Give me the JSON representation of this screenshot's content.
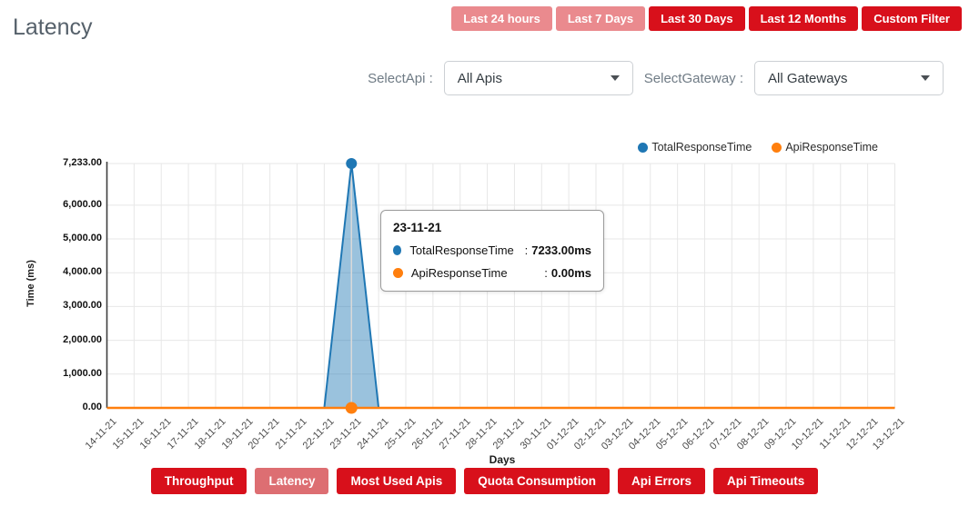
{
  "colors": {
    "red": "#d8101b",
    "red_light": "#ea8a8e",
    "red_mid": "#dd6e72",
    "blue": "#1f77b4",
    "blue_fill": "rgba(31,119,180,0.45)",
    "orange": "#ff7f0e",
    "grid": "#e7e7e7",
    "axis": "#3f3f3f",
    "crosshair": "#d9d9d9"
  },
  "page": {
    "title": "Latency"
  },
  "time_filters": {
    "items": [
      {
        "label": "Last 24 hours",
        "variant": "light"
      },
      {
        "label": "Last 7 Days",
        "variant": "light"
      },
      {
        "label": "Last 30 Days",
        "variant": "solid"
      },
      {
        "label": "Last 12 Months",
        "variant": "solid"
      },
      {
        "label": "Custom Filter",
        "variant": "solid"
      }
    ]
  },
  "filters": {
    "api_label": "SelectApi :",
    "api_value": "All Apis",
    "gateway_label": "SelectGateway :",
    "gateway_value": "All Gateways"
  },
  "legend": {
    "items": [
      {
        "name": "TotalResponseTime",
        "color": "#1f77b4"
      },
      {
        "name": "ApiResponseTime",
        "color": "#ff7f0e"
      }
    ]
  },
  "tooltip": {
    "title": "23-11-21",
    "separator": ":",
    "rows": [
      {
        "name": "TotalResponseTime",
        "color": "#1f77b4",
        "value": "7233.00ms"
      },
      {
        "name": "ApiResponseTime",
        "color": "#ff7f0e",
        "value": "0.00ms"
      }
    ]
  },
  "chart_data": {
    "type": "area",
    "title": "",
    "xlabel": "Days",
    "ylabel": "Time (ms)",
    "categories": [
      "14-11-21",
      "15-11-21",
      "16-11-21",
      "17-11-21",
      "18-11-21",
      "19-11-21",
      "20-11-21",
      "21-11-21",
      "22-11-21",
      "23-11-21",
      "24-11-21",
      "25-11-21",
      "26-11-21",
      "27-11-21",
      "28-11-21",
      "29-11-21",
      "30-11-21",
      "01-12-21",
      "02-12-21",
      "03-12-21",
      "04-12-21",
      "05-12-21",
      "06-12-21",
      "07-12-21",
      "08-12-21",
      "09-12-21",
      "10-12-21",
      "11-12-21",
      "12-12-21",
      "13-12-21"
    ],
    "series": [
      {
        "name": "TotalResponseTime",
        "color": "#1f77b4",
        "values": [
          0,
          0,
          0,
          0,
          0,
          0,
          0,
          0,
          0,
          7233,
          0,
          0,
          0,
          0,
          0,
          0,
          0,
          0,
          0,
          0,
          0,
          0,
          0,
          0,
          0,
          0,
          0,
          0,
          0,
          0
        ]
      },
      {
        "name": "ApiResponseTime",
        "color": "#ff7f0e",
        "values": [
          0,
          0,
          0,
          0,
          0,
          0,
          0,
          0,
          0,
          0,
          0,
          0,
          0,
          0,
          0,
          0,
          0,
          0,
          0,
          0,
          0,
          0,
          0,
          0,
          0,
          0,
          0,
          0,
          0,
          0
        ]
      }
    ],
    "ylim": [
      0,
      7233
    ],
    "yticks": [
      0,
      1000,
      2000,
      3000,
      4000,
      5000,
      6000,
      7233
    ],
    "ytick_labels": [
      "0.00",
      "1,000.00",
      "2,000.00",
      "3,000.00",
      "4,000.00",
      "5,000.00",
      "6,000.00",
      "7,233.00"
    ],
    "highlight_index": 9,
    "grid": true,
    "legend_position": "top-right"
  },
  "bottom_tabs": {
    "items": [
      {
        "label": "Throughput",
        "variant": "solid"
      },
      {
        "label": "Latency",
        "variant": "mid"
      },
      {
        "label": "Most Used Apis",
        "variant": "solid"
      },
      {
        "label": "Quota Consumption",
        "variant": "solid"
      },
      {
        "label": "Api Errors",
        "variant": "solid"
      },
      {
        "label": "Api Timeouts",
        "variant": "solid"
      }
    ]
  }
}
